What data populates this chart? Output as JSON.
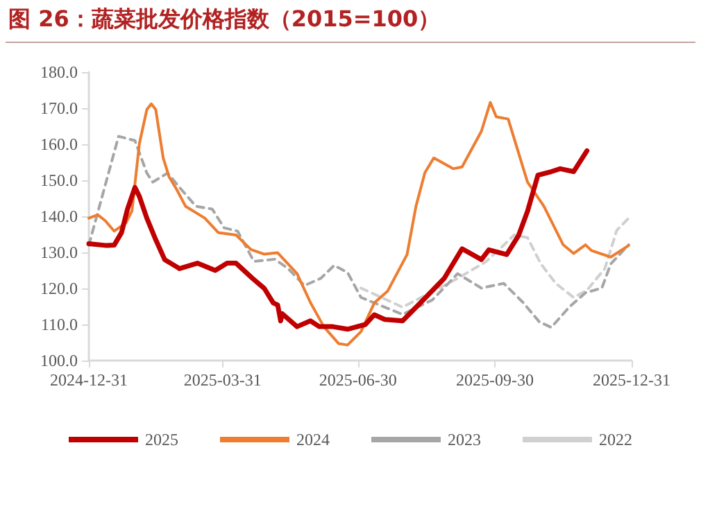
{
  "chart_data": {
    "type": "line",
    "title": "图 26：蔬菜批发价格指数（2015=100）",
    "xlim": [
      "2024-12-31",
      "2025-12-31"
    ],
    "xticks": [
      {
        "value": "2024-12-31",
        "label": "2024-12-31"
      },
      {
        "value": "2025-03-31",
        "label": "2025-03-31"
      },
      {
        "value": "2025-06-30",
        "label": "2025-06-30"
      },
      {
        "value": "2025-09-30",
        "label": "2025-09-30"
      },
      {
        "value": "2025-12-31",
        "label": "2025-12-31"
      }
    ],
    "ylim": [
      100,
      180
    ],
    "yticks": [
      {
        "value": 100,
        "label": "100.0"
      },
      {
        "value": 110,
        "label": "110.0"
      },
      {
        "value": 120,
        "label": "120.0"
      },
      {
        "value": 130,
        "label": "130.0"
      },
      {
        "value": 140,
        "label": "140.0"
      },
      {
        "value": 150,
        "label": "150.0"
      },
      {
        "value": 160,
        "label": "160.0"
      },
      {
        "value": 170,
        "label": "170.0"
      },
      {
        "value": 180,
        "label": "180.0"
      }
    ],
    "grid": false,
    "legend": "bottom",
    "marker": "none",
    "series": [
      {
        "name": "2025",
        "color": "#c00000",
        "line_style": "solid",
        "x": [
          "2024-12-31",
          "2025-01-12",
          "2025-01-17",
          "2025-01-22",
          "2025-01-26",
          "2025-01-31",
          "2025-02-03",
          "2025-02-08",
          "2025-02-14",
          "2025-02-20",
          "2025-03-02",
          "2025-03-14",
          "2025-03-26",
          "2025-04-03",
          "2025-04-09",
          "2025-04-20",
          "2025-04-28",
          "2025-05-04",
          "2025-05-07",
          "2025-05-09",
          "2025-05-10",
          "2025-05-20",
          "2025-05-29",
          "2025-06-04",
          "2025-06-13",
          "2025-06-23",
          "2025-07-05",
          "2025-07-11",
          "2025-07-18",
          "2025-07-30",
          "2025-08-11",
          "2025-08-27",
          "2025-09-08",
          "2025-09-21",
          "2025-09-26",
          "2025-10-08",
          "2025-10-16",
          "2025-10-22",
          "2025-10-29",
          "2025-11-07",
          "2025-11-13",
          "2025-11-22",
          "2025-12-01"
        ],
        "values": [
          132.4,
          131.9,
          132,
          135.5,
          142,
          148,
          145.5,
          139.5,
          133.5,
          128,
          125.5,
          127,
          125,
          127,
          127,
          122.8,
          120,
          116,
          115.4,
          111,
          113,
          109.4,
          111,
          109.4,
          109.4,
          108.7,
          110,
          112.7,
          111.4,
          111,
          116,
          122.8,
          131,
          128,
          130.7,
          129.4,
          134.7,
          141.4,
          151.4,
          152.4,
          153.2,
          152.4,
          158.2
        ]
      },
      {
        "name": "2024",
        "color": "#ed7d31",
        "line_style": "solid",
        "x": [
          "2024-12-31",
          "2025-01-06",
          "2025-01-11",
          "2025-01-17",
          "2025-01-25",
          "2025-01-29",
          "2025-02-03",
          "2025-02-08",
          "2025-02-11",
          "2025-02-14",
          "2025-02-19",
          "2025-02-23",
          "2025-02-28",
          "2025-03-06",
          "2025-03-19",
          "2025-03-28",
          "2025-04-09",
          "2025-04-19",
          "2025-04-28",
          "2025-05-07",
          "2025-05-20",
          "2025-05-29",
          "2025-06-07",
          "2025-06-17",
          "2025-06-23",
          "2025-07-02",
          "2025-07-11",
          "2025-07-20",
          "2025-08-02",
          "2025-08-08",
          "2025-08-14",
          "2025-08-20",
          "2025-09-02",
          "2025-09-08",
          "2025-09-21",
          "2025-09-27",
          "2025-10-01",
          "2025-10-09",
          "2025-10-22",
          "2025-11-02",
          "2025-11-15",
          "2025-11-22",
          "2025-11-30",
          "2025-12-04",
          "2025-12-17",
          "2025-12-29"
        ],
        "values": [
          139.5,
          140.4,
          138.8,
          135.9,
          138.2,
          141.5,
          160.2,
          169.6,
          171.2,
          169.6,
          156.2,
          150.9,
          147.5,
          142.8,
          139.5,
          135.5,
          134.8,
          130.8,
          129.5,
          129.9,
          124.1,
          116.1,
          109.4,
          104.7,
          104.3,
          108,
          116,
          119.3,
          129.4,
          142.8,
          152.1,
          156.2,
          153.2,
          153.7,
          163.6,
          171.6,
          167.6,
          167,
          149.5,
          142.8,
          132.1,
          129.7,
          132.1,
          130.5,
          128.7,
          131.9
        ]
      },
      {
        "name": "2023",
        "color": "#a6a6a6",
        "line_style": "dashed",
        "x": [
          "2024-12-31",
          "2025-01-20",
          "2025-01-31",
          "2025-02-08",
          "2025-02-12",
          "2025-02-22",
          "2025-03-02",
          "2025-03-13",
          "2025-03-24",
          "2025-04-01",
          "2025-04-10",
          "2025-04-21",
          "2025-05-05",
          "2025-05-14",
          "2025-05-25",
          "2025-06-05",
          "2025-06-14",
          "2025-06-23",
          "2025-07-02",
          "2025-07-30",
          "2025-08-19",
          "2025-09-05",
          "2025-09-21",
          "2025-10-06",
          "2025-10-19",
          "2025-10-30",
          "2025-11-07",
          "2025-11-19",
          "2025-11-30",
          "2025-12-11",
          "2025-12-17",
          "2025-12-29"
        ],
        "values": [
          132,
          162.2,
          161,
          152,
          149.5,
          152,
          148,
          142.8,
          142,
          136.8,
          135.9,
          127.5,
          128.1,
          125.5,
          120.8,
          122.8,
          126.4,
          124.4,
          117.5,
          112.8,
          116.8,
          124.1,
          120.1,
          121.4,
          116.1,
          110.7,
          109.2,
          114.8,
          118.8,
          120.1,
          126.8,
          132.1
        ]
      },
      {
        "name": "2022",
        "color": "#d0d0d0",
        "line_style": "dashed",
        "x": [
          "2025-07-02",
          "2025-07-30",
          "2025-09-05",
          "2025-09-24",
          "2025-10-03",
          "2025-10-13",
          "2025-10-22",
          "2025-10-31",
          "2025-11-10",
          "2025-11-22",
          "2025-12-01",
          "2025-12-13",
          "2025-12-21",
          "2025-12-29"
        ],
        "values": [
          120.1,
          114.8,
          122.8,
          127.4,
          130.8,
          134.8,
          134.1,
          126.8,
          121.4,
          117.5,
          119.5,
          125.5,
          136.1,
          139.5
        ]
      }
    ]
  }
}
